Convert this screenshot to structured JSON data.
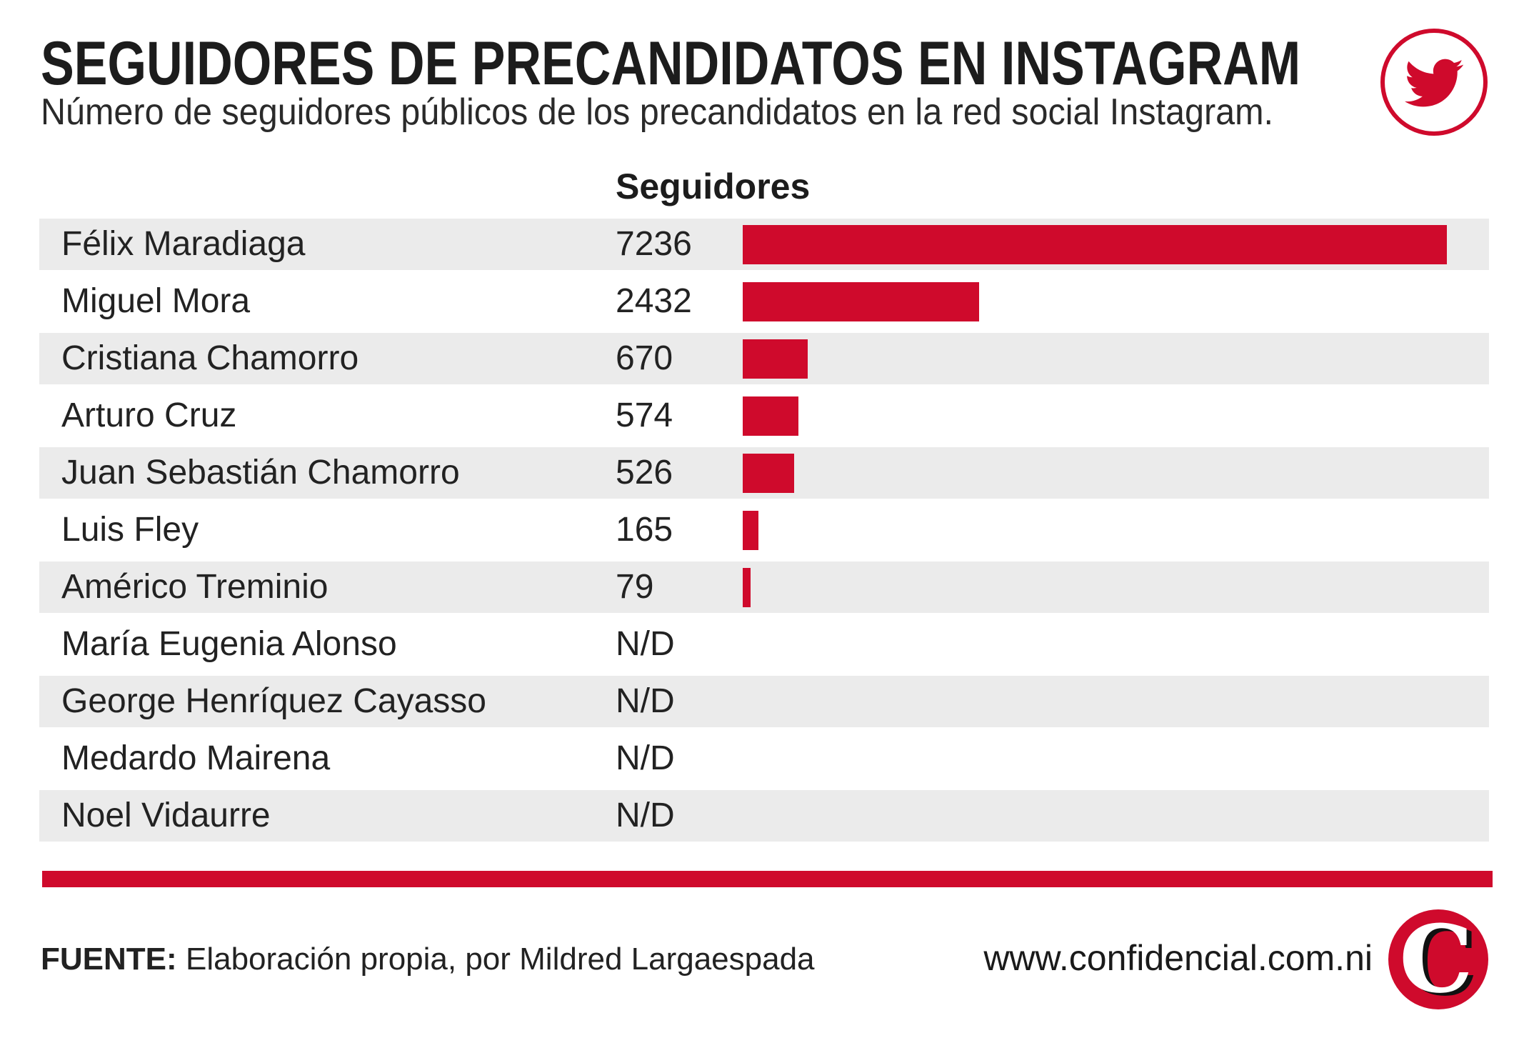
{
  "chart_data": {
    "type": "bar",
    "orientation": "horizontal",
    "title": "SEGUIDORES DE PRECANDIDATOS EN INSTAGRAM",
    "subtitle": "Número de seguidores públicos de los precandidatos en la red social Instagram.",
    "value_header": "Seguidores",
    "categories": [
      "Félix Maradiaga",
      "Miguel Mora",
      "Cristiana Chamorro",
      "Arturo Cruz",
      "Juan Sebastián Chamorro",
      "Luis Fley",
      "Américo Treminio",
      "María Eugenia Alonso",
      "George Henríquez Cayasso",
      "Medardo Mairena",
      "Noel Vidaurre"
    ],
    "values": [
      7236,
      2432,
      670,
      574,
      526,
      165,
      79,
      null,
      null,
      null,
      null
    ],
    "value_labels": [
      "7236",
      "2432",
      "670",
      "574",
      "526",
      "165",
      "79",
      "N/D",
      "N/D",
      "N/D",
      "N/D"
    ],
    "grid": false
  },
  "footer": {
    "source_label": "FUENTE:",
    "source_text": "Elaboración propia, por Mildred Largaespada",
    "website": "www.confidencial.com.ni"
  },
  "logo": {
    "letter": "C"
  },
  "icons": {
    "social": "twitter-icon",
    "brand": "confidencial-logo-icon"
  },
  "colors": {
    "accent": "#cf0a2c",
    "row_stripe": "#ebebeb",
    "text": "#222222",
    "background": "#ffffff"
  }
}
